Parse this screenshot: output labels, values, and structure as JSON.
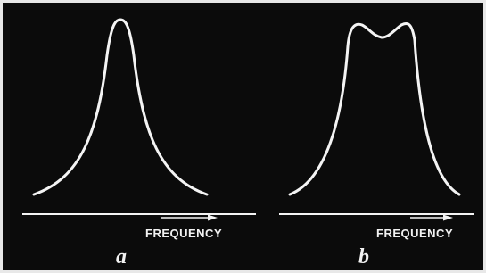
{
  "panels": [
    {
      "axis_label": "FREQUENCY",
      "caption": "a"
    },
    {
      "axis_label": "FREQUENCY",
      "caption": "b"
    }
  ]
}
